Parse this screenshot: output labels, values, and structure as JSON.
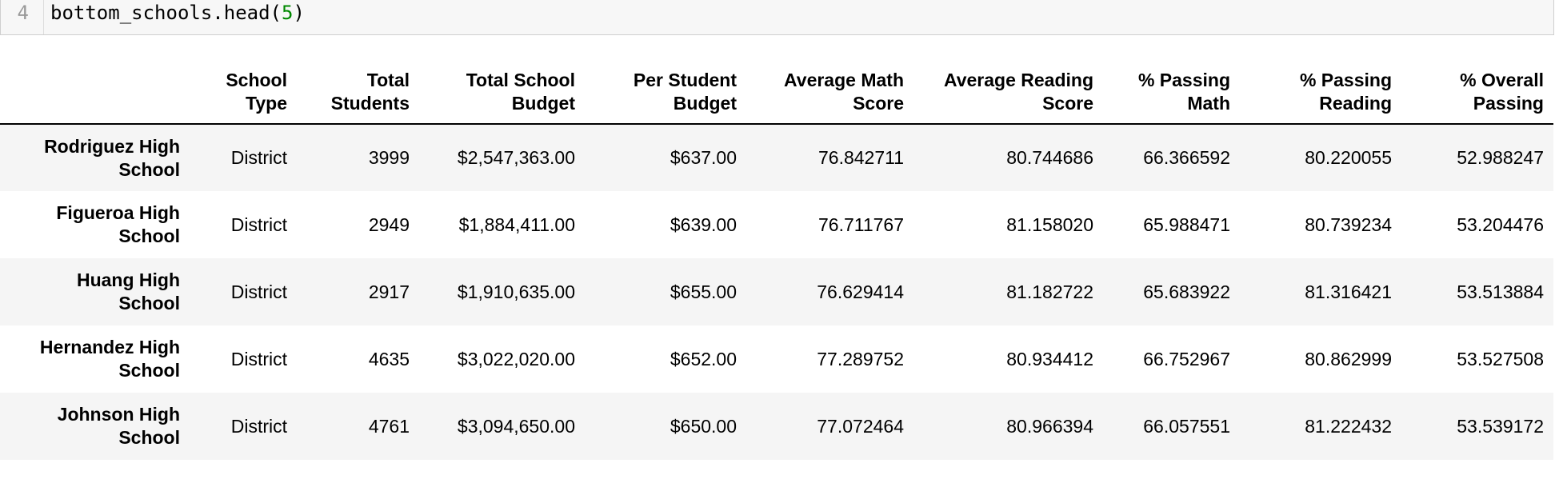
{
  "code_cell": {
    "line_number": "4",
    "code_main": "bottom_schools.head(",
    "code_arg": "5",
    "code_close": ")"
  },
  "table": {
    "columns": [
      "",
      "School\nType",
      "Total\nStudents",
      "Total School\nBudget",
      "Per Student\nBudget",
      "Average Math\nScore",
      "Average Reading\nScore",
      "% Passing\nMath",
      "% Passing\nReading",
      "% Overall\nPassing"
    ],
    "rows": [
      [
        "Rodriguez High School",
        "District",
        "3999",
        "$2,547,363.00",
        "$637.00",
        "76.842711",
        "80.744686",
        "66.366592",
        "80.220055",
        "52.988247"
      ],
      [
        "Figueroa High School",
        "District",
        "2949",
        "$1,884,411.00",
        "$639.00",
        "76.711767",
        "81.158020",
        "65.988471",
        "80.739234",
        "53.204476"
      ],
      [
        "Huang High School",
        "District",
        "2917",
        "$1,910,635.00",
        "$655.00",
        "76.629414",
        "81.182722",
        "65.683922",
        "81.316421",
        "53.513884"
      ],
      [
        "Hernandez High School",
        "District",
        "4635",
        "$3,022,020.00",
        "$652.00",
        "77.289752",
        "80.934412",
        "66.752967",
        "80.862999",
        "53.527508"
      ],
      [
        "Johnson High School",
        "District",
        "4761",
        "$3,094,650.00",
        "$650.00",
        "77.072464",
        "80.966394",
        "66.057551",
        "81.222432",
        "53.539172"
      ]
    ]
  }
}
